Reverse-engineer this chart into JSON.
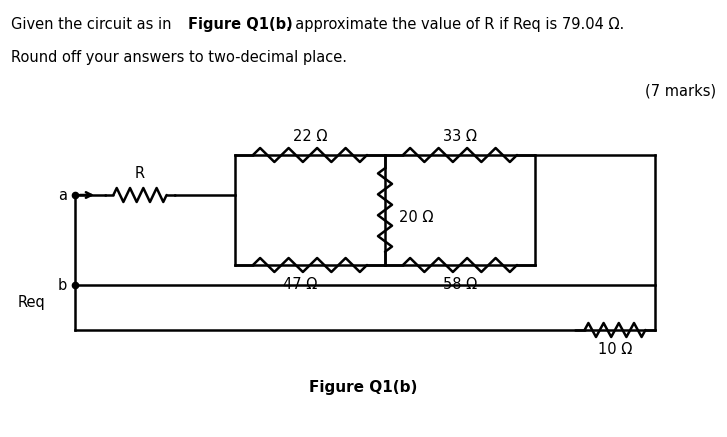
{
  "line1_pre": "Given the circuit as in ",
  "line1_bold": "Figure Q1(b)",
  "line1_post": ", approximate the value of R if Req is 79.04 Ω.",
  "line2": "Round off your answers to two-decimal place.",
  "marks": "(7 marks)",
  "fig_label": "Figure Q1(b)",
  "resistors": {
    "R": "R",
    "R22": "22 Ω",
    "R33": "33 Ω",
    "R20": "20 Ω",
    "R47": "47 Ω",
    "R58": "58 Ω",
    "R10": "10 Ω"
  },
  "nodes": {
    "a": "a",
    "b": "b",
    "Req": "Req"
  },
  "bg_color": "#ffffff",
  "line_color": "#000000",
  "font_size": 10.5
}
